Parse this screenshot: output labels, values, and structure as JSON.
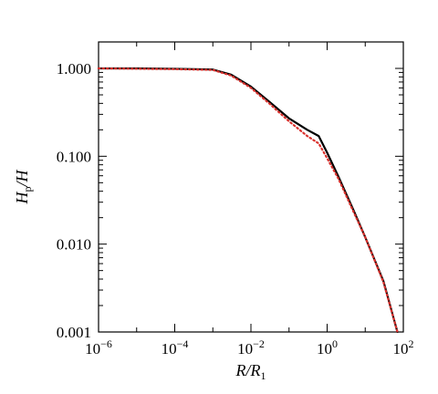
{
  "chart_data": {
    "type": "line",
    "title": "",
    "xscale": "log",
    "yscale": "log",
    "xlim": [
      1e-06,
      100
    ],
    "ylim": [
      0.001,
      2
    ],
    "xlabel": {
      "main": "R/R",
      "sub": "1"
    },
    "ylabel": {
      "main": "H",
      "sub": "p",
      "tail": "/H"
    },
    "x_ticks": [
      {
        "value": 1e-06,
        "base": "10",
        "exp": "−6"
      },
      {
        "value": 0.0001,
        "base": "10",
        "exp": "−4"
      },
      {
        "value": 0.01,
        "base": "10",
        "exp": "−2"
      },
      {
        "value": 1,
        "base": "10",
        "exp": "0"
      },
      {
        "value": 100,
        "base": "10",
        "exp": "2"
      }
    ],
    "y_ticks": [
      {
        "value": 0.001,
        "label": "0.001"
      },
      {
        "value": 0.01,
        "label": "0.010"
      },
      {
        "value": 0.1,
        "label": "0.100"
      },
      {
        "value": 1,
        "label": "1.000"
      }
    ],
    "grid": false,
    "legend": "none",
    "series": [
      {
        "style": "solid",
        "color": "#000000",
        "x": [
          1e-06,
          1e-05,
          0.0001,
          0.001,
          0.003,
          0.01,
          0.03,
          0.1,
          0.3,
          0.6,
          1.0,
          2.0,
          5.0,
          10,
          30,
          70
        ],
        "y": [
          1.0,
          1.0,
          0.99,
          0.97,
          0.85,
          0.62,
          0.42,
          0.27,
          0.2,
          0.17,
          0.11,
          0.058,
          0.024,
          0.012,
          0.0038,
          0.001
        ]
      },
      {
        "style": "dotted",
        "color": "#d9302c",
        "x": [
          1e-06,
          1e-05,
          0.0001,
          0.001,
          0.003,
          0.01,
          0.03,
          0.1,
          0.3,
          0.6,
          1.0,
          2.0,
          5.0,
          10,
          30,
          70
        ],
        "y": [
          1.0,
          0.99,
          0.98,
          0.96,
          0.83,
          0.6,
          0.4,
          0.25,
          0.17,
          0.14,
          0.095,
          0.055,
          0.023,
          0.012,
          0.0037,
          0.001
        ]
      }
    ]
  }
}
